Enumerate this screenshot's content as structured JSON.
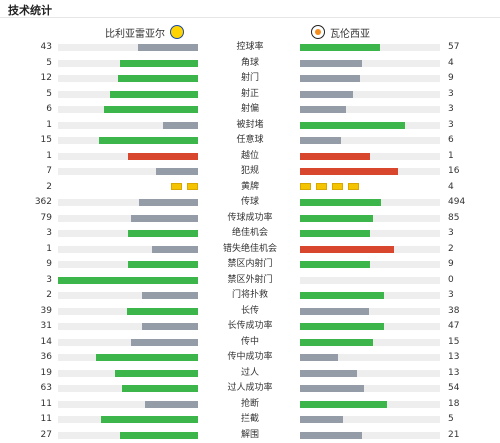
{
  "page": {
    "title": "技术统计"
  },
  "teams": {
    "home": {
      "name": "比利亚雷亚尔",
      "badge_icon": "villarreal-badge-icon"
    },
    "away": {
      "name": "瓦伦西亚",
      "badge_icon": "valencia-badge-icon"
    }
  },
  "colors": {
    "winner": "#3cb54a",
    "loser": "#939ca7",
    "negative": "#d9462e",
    "track": "#eeeeee",
    "card": "#f5c400"
  },
  "stats": [
    {
      "label": "控球率",
      "home": "43",
      "away": "57",
      "home_ratio": 0.43,
      "away_ratio": 0.57,
      "home_color": "grey",
      "away_color": "green"
    },
    {
      "label": "角球",
      "home": "5",
      "away": "4",
      "home_ratio": 0.56,
      "away_ratio": 0.44,
      "home_color": "green",
      "away_color": "grey"
    },
    {
      "label": "射门",
      "home": "12",
      "away": "9",
      "home_ratio": 0.57,
      "away_ratio": 0.43,
      "home_color": "green",
      "away_color": "grey"
    },
    {
      "label": "射正",
      "home": "5",
      "away": "3",
      "home_ratio": 0.63,
      "away_ratio": 0.38,
      "home_color": "green",
      "away_color": "grey"
    },
    {
      "label": "射偏",
      "home": "6",
      "away": "3",
      "home_ratio": 0.67,
      "away_ratio": 0.33,
      "home_color": "green",
      "away_color": "grey"
    },
    {
      "label": "被封堵",
      "home": "1",
      "away": "3",
      "home_ratio": 0.25,
      "away_ratio": 0.75,
      "home_color": "grey",
      "away_color": "green"
    },
    {
      "label": "任意球",
      "home": "15",
      "away": "6",
      "home_ratio": 0.71,
      "away_ratio": 0.29,
      "home_color": "green",
      "away_color": "grey"
    },
    {
      "label": "越位",
      "home": "1",
      "away": "1",
      "home_ratio": 0.5,
      "away_ratio": 0.5,
      "home_color": "red",
      "away_color": "red"
    },
    {
      "label": "犯规",
      "home": "7",
      "away": "16",
      "home_ratio": 0.3,
      "away_ratio": 0.7,
      "home_color": "grey",
      "away_color": "red"
    },
    {
      "label": "黄牌",
      "home": "2",
      "away": "4",
      "home_cards": 2,
      "away_cards": 4
    },
    {
      "label": "传球",
      "home": "362",
      "away": "494",
      "home_ratio": 0.42,
      "away_ratio": 0.58,
      "home_color": "grey",
      "away_color": "green"
    },
    {
      "label": "传球成功率",
      "home": "79",
      "away": "85",
      "home_ratio": 0.48,
      "away_ratio": 0.52,
      "home_color": "grey",
      "away_color": "green"
    },
    {
      "label": "绝佳机会",
      "home": "3",
      "away": "3",
      "home_ratio": 0.5,
      "away_ratio": 0.5,
      "home_color": "green",
      "away_color": "green"
    },
    {
      "label": "错失绝佳机会",
      "home": "1",
      "away": "2",
      "home_ratio": 0.33,
      "away_ratio": 0.67,
      "home_color": "grey",
      "away_color": "red"
    },
    {
      "label": "禁区内射门",
      "home": "9",
      "away": "9",
      "home_ratio": 0.5,
      "away_ratio": 0.5,
      "home_color": "green",
      "away_color": "green"
    },
    {
      "label": "禁区外射门",
      "home": "3",
      "away": "0",
      "home_ratio": 1.0,
      "away_ratio": 0.0,
      "home_color": "green",
      "away_color": "grey"
    },
    {
      "label": "门将扑救",
      "home": "2",
      "away": "3",
      "home_ratio": 0.4,
      "away_ratio": 0.6,
      "home_color": "grey",
      "away_color": "green"
    },
    {
      "label": "长传",
      "home": "39",
      "away": "38",
      "home_ratio": 0.51,
      "away_ratio": 0.49,
      "home_color": "green",
      "away_color": "grey"
    },
    {
      "label": "长传成功率",
      "home": "31",
      "away": "47",
      "home_ratio": 0.4,
      "away_ratio": 0.6,
      "home_color": "grey",
      "away_color": "green"
    },
    {
      "label": "传中",
      "home": "14",
      "away": "15",
      "home_ratio": 0.48,
      "away_ratio": 0.52,
      "home_color": "grey",
      "away_color": "green"
    },
    {
      "label": "传中成功率",
      "home": "36",
      "away": "13",
      "home_ratio": 0.73,
      "away_ratio": 0.27,
      "home_color": "green",
      "away_color": "grey"
    },
    {
      "label": "过人",
      "home": "19",
      "away": "13",
      "home_ratio": 0.59,
      "away_ratio": 0.41,
      "home_color": "green",
      "away_color": "grey"
    },
    {
      "label": "过人成功率",
      "home": "63",
      "away": "54",
      "home_ratio": 0.54,
      "away_ratio": 0.46,
      "home_color": "green",
      "away_color": "grey"
    },
    {
      "label": "抢断",
      "home": "11",
      "away": "18",
      "home_ratio": 0.38,
      "away_ratio": 0.62,
      "home_color": "grey",
      "away_color": "green"
    },
    {
      "label": "拦截",
      "home": "11",
      "away": "5",
      "home_ratio": 0.69,
      "away_ratio": 0.31,
      "home_color": "green",
      "away_color": "grey"
    },
    {
      "label": "解围",
      "home": "27",
      "away": "21",
      "home_ratio": 0.56,
      "away_ratio": 0.44,
      "home_color": "green",
      "away_color": "grey"
    }
  ]
}
